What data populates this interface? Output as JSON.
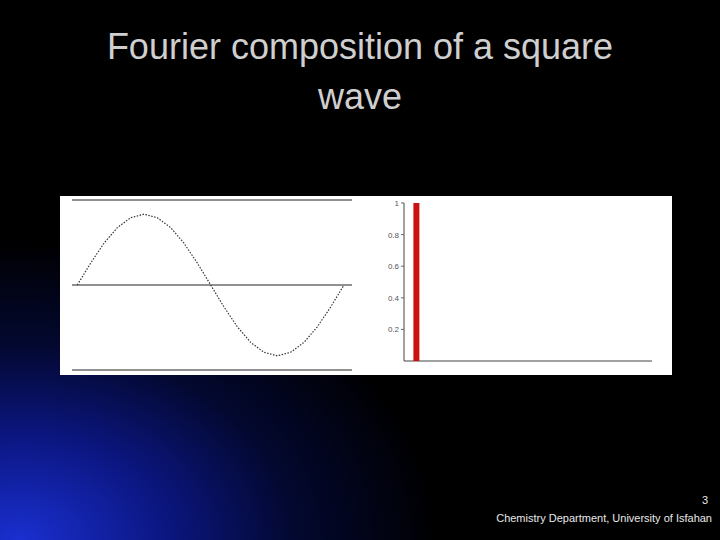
{
  "slide": {
    "title": "Fourier composition of a square wave",
    "page_number": "3",
    "footer": "Chemistry Department, University of Isfahan"
  },
  "chart_data": [
    {
      "type": "line",
      "x": [
        0,
        0.05,
        0.1,
        0.15,
        0.2,
        0.25,
        0.3,
        0.35,
        0.4,
        0.45,
        0.5,
        0.55,
        0.6,
        0.65,
        0.7,
        0.75,
        0.8,
        0.85,
        0.9,
        0.95,
        1
      ],
      "values": [
        0,
        0.31,
        0.59,
        0.81,
        0.95,
        1,
        0.95,
        0.81,
        0.59,
        0.31,
        0,
        -0.31,
        -0.59,
        -0.81,
        -0.95,
        -1,
        -0.95,
        -0.81,
        -0.59,
        -0.31,
        0
      ],
      "xlim": [
        -0.02,
        1.03
      ],
      "ylim": [
        -1.2,
        1.2
      ],
      "tick_labels": false,
      "color": "#333333",
      "line_style": "dotted"
    },
    {
      "type": "bar",
      "x": [
        1
      ],
      "values": [
        1
      ],
      "xlim": [
        0,
        20
      ],
      "ylim": [
        0,
        1
      ],
      "yticks": [
        0.2,
        0.4,
        0.6,
        0.8,
        1
      ],
      "tick_labels": "y",
      "color": "#cc1111"
    }
  ]
}
